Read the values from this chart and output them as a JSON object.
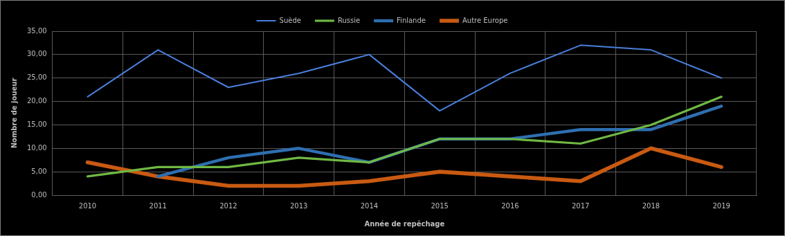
{
  "chart_data": {
    "type": "line",
    "xlabel": "Année de repêchage",
    "ylabel": "Nombre de joueur",
    "categories": [
      "2010",
      "2011",
      "2012",
      "2013",
      "2014",
      "2015",
      "2016",
      "2017",
      "2018",
      "2019"
    ],
    "series": [
      {
        "name": "Suède",
        "color": "#4a7fdc",
        "values": [
          21,
          31,
          23,
          26,
          30,
          18,
          26,
          32,
          31,
          25
        ]
      },
      {
        "name": "Russie",
        "color": "#70b844",
        "values": [
          4,
          6,
          6,
          8,
          7,
          12,
          12,
          11,
          15,
          21
        ]
      },
      {
        "name": "Finlande",
        "color": "#2e6fb0",
        "values": [
          null,
          4,
          8,
          10,
          7,
          12,
          12,
          14,
          14,
          19
        ]
      },
      {
        "name": "Autre Europe",
        "color": "#c85a12",
        "values": [
          7,
          4,
          2,
          2,
          3,
          5,
          4,
          3,
          10,
          6
        ]
      }
    ],
    "ylim": [
      0,
      35
    ],
    "yticks": [
      {
        "value": 0,
        "label": "0,00"
      },
      {
        "value": 5,
        "label": "5,00"
      },
      {
        "value": 10,
        "label": "10,00"
      },
      {
        "value": 15,
        "label": "15,00"
      },
      {
        "value": 20,
        "label": "20,00"
      },
      {
        "value": 25,
        "label": "25,00"
      },
      {
        "value": 30,
        "label": "30,00"
      },
      {
        "value": 35,
        "label": "35,00"
      }
    ],
    "grid": true,
    "legend": "top",
    "marker": "none",
    "line_style": "solid"
  }
}
